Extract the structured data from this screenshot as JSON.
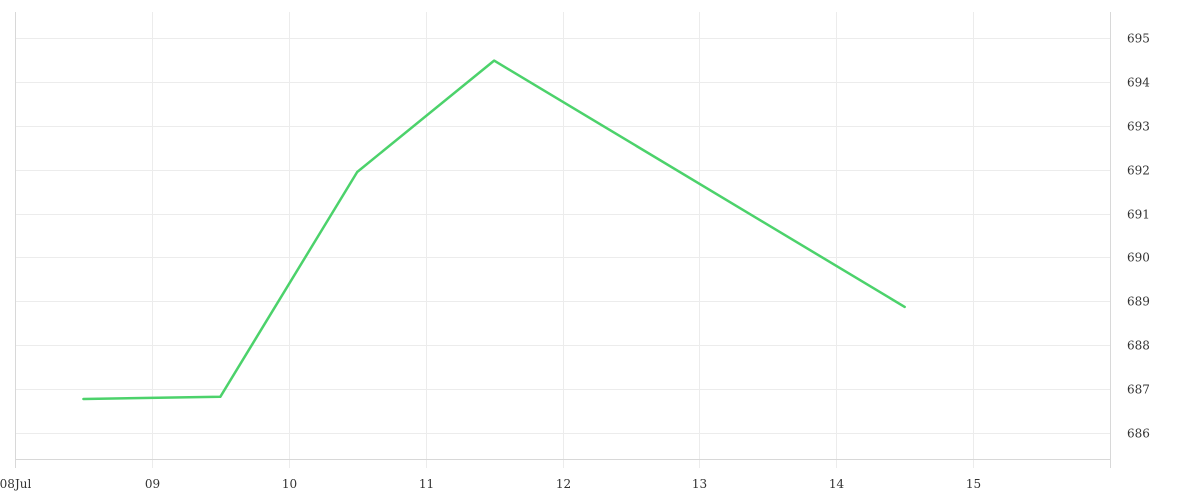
{
  "chart_data": {
    "type": "line",
    "title": "",
    "xlabel": "",
    "ylabel": "",
    "x_tick_labels": [
      "08Jul",
      "09",
      "10",
      "11",
      "12",
      "13",
      "14",
      "15"
    ],
    "x_range": [
      "2024-07-08T00:00",
      "2024-07-16T00:00"
    ],
    "x_ticks": [
      "2024-07-08T00:00",
      "2024-07-09T00:00",
      "2024-07-10T00:00",
      "2024-07-11T00:00",
      "2024-07-12T00:00",
      "2024-07-13T00:00",
      "2024-07-14T00:00",
      "2024-07-15T00:00"
    ],
    "ylim": [
      685.4,
      695.6
    ],
    "y_ticks": [
      686,
      687,
      688,
      689,
      690,
      691,
      692,
      693,
      694,
      695
    ],
    "grid": true,
    "y_axis_position": "right",
    "series": [
      {
        "color": "#4cd26b",
        "points": [
          {
            "x": "2024-07-08T12:00",
            "y": 686.77
          },
          {
            "x": "2024-07-09T12:00",
            "y": 686.82
          },
          {
            "x": "2024-07-10T12:00",
            "y": 691.95
          },
          {
            "x": "2024-07-11T12:00",
            "y": 694.49
          },
          {
            "x": "2024-07-14T12:00",
            "y": 688.87
          }
        ]
      }
    ]
  }
}
